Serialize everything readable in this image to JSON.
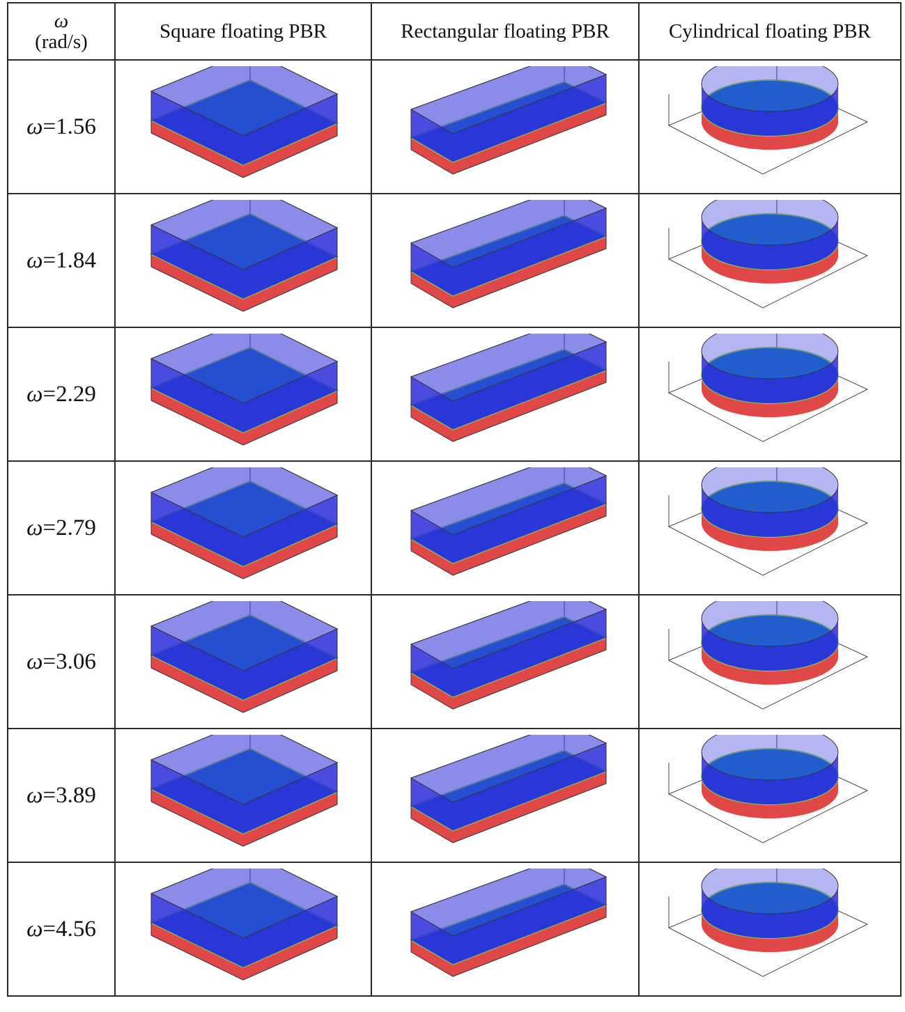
{
  "header": {
    "omega_symbol": "ω",
    "omega_unit": "(rad/s)",
    "col_square": "Square floating PBR",
    "col_rect": "Rectangular floating PBR",
    "col_cyl": "Cylindrical floating PBR"
  },
  "rows": [
    {
      "label_symbol": "ω",
      "label_value": "=1.56"
    },
    {
      "label_symbol": "ω",
      "label_value": "=1.84"
    },
    {
      "label_symbol": "ω",
      "label_value": "=2.29"
    },
    {
      "label_symbol": "ω",
      "label_value": "=2.79"
    },
    {
      "label_symbol": "ω",
      "label_value": "=3.06"
    },
    {
      "label_symbol": "ω",
      "label_value": "=3.89"
    },
    {
      "label_symbol": "ω",
      "label_value": "=4.56"
    }
  ],
  "colors": {
    "liquid": "#e04848",
    "gas": "#2b2bd9",
    "interface": "#1e78c8",
    "interface_edge": "#8ad44a"
  }
}
